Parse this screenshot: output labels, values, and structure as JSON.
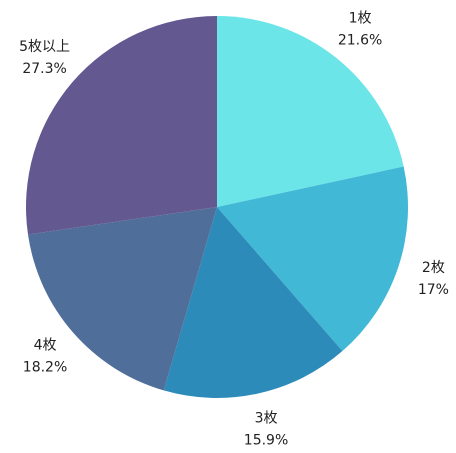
{
  "chart_data": {
    "type": "pie",
    "categories": [
      "1枚",
      "2枚",
      "3枚",
      "4枚",
      "5枚以上"
    ],
    "values": [
      21.6,
      17,
      15.9,
      18.2,
      27.3
    ],
    "value_labels": [
      "21.6%",
      "17%",
      "15.9%",
      "18.2%",
      "27.3%"
    ],
    "colors": [
      "#6ce5e8",
      "#41b8d5",
      "#2d8bba",
      "#506e9a",
      "#635990"
    ]
  }
}
